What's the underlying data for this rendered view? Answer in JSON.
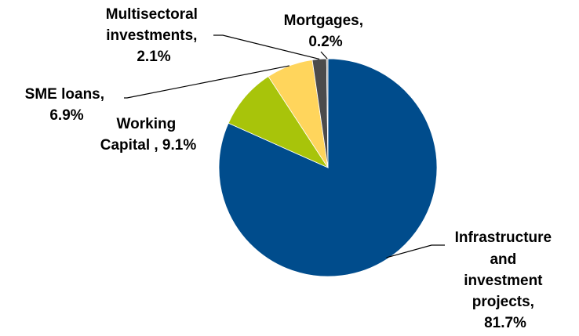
{
  "chart_data": {
    "type": "pie",
    "title": "",
    "slices": [
      {
        "name": "Infrastructure and investment projects",
        "value": 81.7,
        "color": "#004C8C",
        "label_lines": [
          "Infrastructure",
          "and",
          "investment",
          "projects,",
          "81.7%"
        ]
      },
      {
        "name": "Working Capital",
        "value": 9.1,
        "color": "#A8C40A",
        "label_lines": [
          "Working",
          "Capital , 9.1%"
        ]
      },
      {
        "name": "SME loans",
        "value": 6.9,
        "color": "#FFD55C",
        "label_lines": [
          "SME loans,",
          "6.9%"
        ]
      },
      {
        "name": "Multisectoral investments",
        "value": 2.1,
        "color": "#4B4B4B",
        "label_lines": [
          "Multisectoral",
          "investments,",
          "2.1%"
        ]
      },
      {
        "name": "Mortgages",
        "value": 0.2,
        "color": "#9E9E9E",
        "label_lines": [
          "Mortgages,",
          "0.2%"
        ]
      }
    ],
    "legend": "none",
    "data_labels": "outside"
  }
}
